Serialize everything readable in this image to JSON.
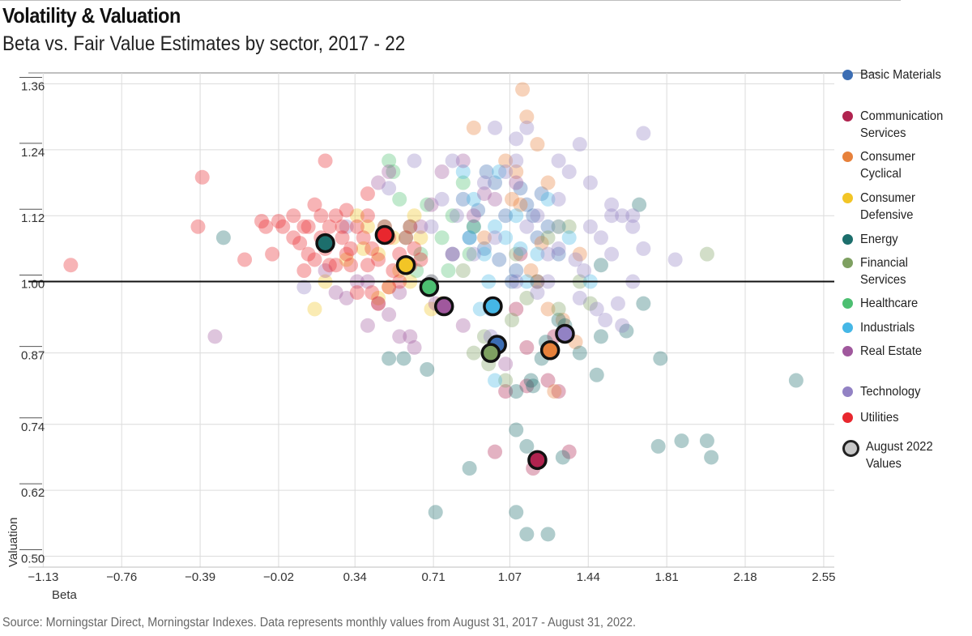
{
  "header": {
    "title": "Volatility & Valuation",
    "subtitle": "Beta vs. Fair Value Estimates by sector, 2017 - 22"
  },
  "footer": {
    "source": "Source: Morningstar Direct, Morningstar Indexes. Data represents monthly values from August 31, 2017 - August 31, 2022."
  },
  "legend": {
    "august_label": "August 2022 Values"
  },
  "chart_data": {
    "type": "scatter",
    "xlabel": "Beta",
    "ylabel": "Valuation",
    "xlim": [
      -1.2,
      2.6
    ],
    "ylim": [
      0.48,
      1.38
    ],
    "x_ticks": [
      "−1.13",
      "−0.76",
      "−0.39",
      "−0.02",
      "0.34",
      "0.71",
      "1.07",
      "1.44",
      "1.81",
      "2.18",
      "2.55"
    ],
    "x_tick_values": [
      -1.13,
      -0.76,
      -0.39,
      -0.02,
      0.34,
      0.71,
      1.07,
      1.44,
      1.81,
      2.18,
      2.55
    ],
    "y_ticks": [
      "1.36",
      "1.24",
      "1.12",
      "1.00",
      "0.87",
      "0.74",
      "0.62",
      "0.50"
    ],
    "y_tick_values": [
      1.36,
      1.24,
      1.12,
      1.0,
      0.87,
      0.74,
      0.62,
      0.5
    ],
    "reference_line_y": 1.0,
    "grid": true,
    "legend_position": "right",
    "series": [
      {
        "name": "Basic Materials",
        "color": "#3b6db3",
        "august_2022": [
          1.01,
          0.885
        ],
        "history": [
          [
            1.05,
            1.12
          ],
          [
            0.95,
            1.06
          ],
          [
            1.1,
            1.02
          ],
          [
            0.9,
            1.1
          ],
          [
            1.2,
            1.08
          ],
          [
            0.85,
            1.15
          ],
          [
            1.0,
            1.18
          ],
          [
            1.15,
            1.14
          ],
          [
            0.8,
            1.05
          ],
          [
            1.25,
            1.1
          ],
          [
            0.98,
            0.95
          ],
          [
            1.08,
            1.0
          ],
          [
            0.92,
            1.13
          ],
          [
            1.3,
            1.05
          ],
          [
            1.12,
            1.17
          ],
          [
            0.88,
            1.08
          ],
          [
            1.02,
            1.04
          ],
          [
            1.18,
            1.12
          ],
          [
            0.96,
            1.2
          ],
          [
            1.22,
            1.16
          ]
        ]
      },
      {
        "name": "Communication Services",
        "color": "#b0234f",
        "august_2022": [
          1.2,
          0.675
        ],
        "history": [
          [
            1.2,
            0.68
          ],
          [
            1.18,
            0.66
          ],
          [
            1.0,
            0.69
          ],
          [
            1.35,
            0.69
          ],
          [
            1.15,
            0.81
          ],
          [
            1.25,
            0.82
          ],
          [
            1.3,
            0.8
          ],
          [
            1.05,
            0.8
          ],
          [
            1.1,
            0.95
          ],
          [
            1.2,
            1.0
          ],
          [
            1.28,
            0.9
          ],
          [
            1.12,
            1.05
          ],
          [
            1.15,
            0.88
          ]
        ]
      },
      {
        "name": "Consumer Cyclical",
        "color": "#e7813b",
        "august_2022": [
          1.26,
          0.875
        ],
        "history": [
          [
            1.1,
            1.2
          ],
          [
            1.2,
            1.25
          ],
          [
            1.15,
            1.3
          ],
          [
            1.25,
            1.18
          ],
          [
            0.9,
            1.28
          ],
          [
            1.13,
            1.35
          ],
          [
            1.05,
            1.22
          ],
          [
            1.3,
            1.1
          ],
          [
            1.4,
            1.05
          ],
          [
            1.25,
            0.95
          ],
          [
            1.32,
            0.93
          ],
          [
            1.38,
            0.89
          ],
          [
            1.28,
            0.8
          ],
          [
            1.12,
            1.14
          ],
          [
            1.22,
            1.07
          ],
          [
            0.95,
            1.08
          ],
          [
            1.17,
            1.02
          ],
          [
            1.08,
            1.15
          ]
        ]
      },
      {
        "name": "Consumer Defensive",
        "color": "#f2c526",
        "august_2022": [
          0.58,
          1.03
        ],
        "history": [
          [
            0.55,
            1.02
          ],
          [
            0.5,
            0.99
          ],
          [
            0.45,
            1.05
          ],
          [
            0.6,
            1.0
          ],
          [
            0.65,
            1.08
          ],
          [
            0.4,
            1.1
          ],
          [
            0.35,
            1.12
          ],
          [
            0.3,
            1.04
          ],
          [
            0.2,
            1.0
          ],
          [
            0.7,
            0.95
          ],
          [
            0.75,
            0.96
          ],
          [
            0.62,
            1.12
          ],
          [
            0.52,
            1.08
          ],
          [
            0.45,
            0.97
          ],
          [
            0.15,
            0.95
          ],
          [
            0.38,
            1.06
          ]
        ]
      },
      {
        "name": "Energy",
        "color": "#1c6e6c",
        "august_2022": [
          0.2,
          1.07
        ],
        "history": [
          [
            1.1,
            0.73
          ],
          [
            1.15,
            0.7
          ],
          [
            1.32,
            0.68
          ],
          [
            1.77,
            0.7
          ],
          [
            1.88,
            0.71
          ],
          [
            2.0,
            0.71
          ],
          [
            2.02,
            0.68
          ],
          [
            2.42,
            0.82
          ],
          [
            1.1,
            0.58
          ],
          [
            1.15,
            0.54
          ],
          [
            1.25,
            0.54
          ],
          [
            0.72,
            0.58
          ],
          [
            0.88,
            0.66
          ],
          [
            0.68,
            0.84
          ],
          [
            0.5,
            0.86
          ],
          [
            0.57,
            0.86
          ],
          [
            1.48,
            0.83
          ],
          [
            1.5,
            0.9
          ],
          [
            1.78,
            0.86
          ],
          [
            1.7,
            0.96
          ],
          [
            1.33,
            0.92
          ],
          [
            1.4,
            0.87
          ],
          [
            1.24,
            0.89
          ],
          [
            1.3,
            0.93
          ],
          [
            1.17,
            0.82
          ],
          [
            1.62,
            0.91
          ],
          [
            1.5,
            1.03
          ],
          [
            1.68,
            1.14
          ],
          [
            -0.28,
            1.08
          ],
          [
            1.22,
            0.86
          ],
          [
            1.1,
            0.8
          ],
          [
            1.18,
            0.81
          ]
        ]
      },
      {
        "name": "Financial Services",
        "color": "#7ea061",
        "august_2022": [
          0.98,
          0.87
        ],
        "history": [
          [
            0.97,
            0.85
          ],
          [
            1.0,
            0.88
          ],
          [
            1.05,
            0.82
          ],
          [
            0.95,
            0.9
          ],
          [
            2.0,
            1.05
          ],
          [
            1.3,
            0.95
          ],
          [
            1.45,
            0.96
          ],
          [
            1.2,
            1.0
          ],
          [
            1.1,
            1.05
          ],
          [
            1.35,
            1.1
          ],
          [
            1.4,
            1.0
          ],
          [
            1.08,
            0.93
          ],
          [
            1.15,
            0.97
          ],
          [
            0.9,
            0.87
          ],
          [
            1.25,
            1.08
          ],
          [
            0.85,
            1.02
          ]
        ]
      },
      {
        "name": "Healthcare",
        "color": "#4cbf71",
        "august_2022": [
          0.69,
          0.99
        ],
        "history": [
          [
            0.5,
            1.22
          ],
          [
            0.52,
            1.2
          ],
          [
            0.55,
            1.15
          ],
          [
            0.6,
            1.1
          ],
          [
            0.65,
            1.05
          ],
          [
            0.7,
            1.0
          ],
          [
            0.75,
            1.08
          ],
          [
            0.8,
            1.12
          ],
          [
            0.85,
            1.18
          ],
          [
            0.9,
            1.1
          ],
          [
            0.63,
            1.02
          ],
          [
            0.58,
            1.08
          ],
          [
            0.68,
            1.14
          ],
          [
            0.78,
            1.02
          ],
          [
            0.88,
            1.05
          ],
          [
            0.48,
            1.1
          ]
        ]
      },
      {
        "name": "Industrials",
        "color": "#45b7e6",
        "august_2022": [
          0.99,
          0.955
        ],
        "history": [
          [
            0.95,
            1.05
          ],
          [
            1.0,
            1.1
          ],
          [
            1.05,
            1.08
          ],
          [
            1.1,
            1.12
          ],
          [
            1.15,
            1.0
          ],
          [
            1.2,
            1.05
          ],
          [
            1.3,
            1.1
          ],
          [
            1.35,
            1.08
          ],
          [
            1.45,
            1.0
          ],
          [
            0.9,
            1.15
          ],
          [
            0.85,
            1.2
          ],
          [
            1.02,
            1.2
          ],
          [
            1.25,
            1.15
          ],
          [
            1.0,
            0.82
          ],
          [
            0.93,
            0.95
          ],
          [
            0.97,
            1.0
          ],
          [
            1.12,
            1.06
          ],
          [
            0.88,
            1.08
          ]
        ]
      },
      {
        "name": "Real Estate",
        "color": "#a0589d",
        "august_2022": [
          0.76,
          0.955
        ],
        "history": [
          [
            0.4,
            1.0
          ],
          [
            0.45,
            0.96
          ],
          [
            0.5,
            0.94
          ],
          [
            0.55,
            0.98
          ],
          [
            0.6,
            0.9
          ],
          [
            0.4,
            0.92
          ],
          [
            0.45,
            1.18
          ],
          [
            0.7,
            1.14
          ],
          [
            0.85,
            1.22
          ],
          [
            0.75,
            1.2
          ],
          [
            0.65,
            1.1
          ],
          [
            0.8,
            1.05
          ],
          [
            0.5,
            1.2
          ],
          [
            0.3,
            0.97
          ],
          [
            0.62,
            0.88
          ],
          [
            0.55,
            0.9
          ],
          [
            -0.32,
            0.9
          ],
          [
            0.35,
            1.0
          ],
          [
            0.2,
            1.02
          ],
          [
            0.25,
            0.98
          ],
          [
            0.7,
            1.0
          ],
          [
            0.9,
            1.12
          ],
          [
            1.0,
            1.15
          ],
          [
            1.1,
            1.18
          ],
          [
            0.95,
            1.16
          ],
          [
            1.05,
            0.85
          ],
          [
            0.85,
            0.92
          ],
          [
            0.72,
            0.96
          ]
        ]
      },
      {
        "name": "Technology",
        "color": "#9282c4",
        "august_2022": [
          1.33,
          0.905
        ],
        "history": [
          [
            1.7,
            1.27
          ],
          [
            1.4,
            1.25
          ],
          [
            1.1,
            1.26
          ],
          [
            1.15,
            1.28
          ],
          [
            1.3,
            1.22
          ],
          [
            1.45,
            1.18
          ],
          [
            1.55,
            1.14
          ],
          [
            1.6,
            1.12
          ],
          [
            1.65,
            1.1
          ],
          [
            1.5,
            1.08
          ],
          [
            1.55,
            1.05
          ],
          [
            1.65,
            1.0
          ],
          [
            1.7,
            1.06
          ],
          [
            1.85,
            1.04
          ],
          [
            1.42,
            1.02
          ],
          [
            1.4,
            0.97
          ],
          [
            1.48,
            0.95
          ],
          [
            1.52,
            0.93
          ],
          [
            1.6,
            0.92
          ],
          [
            1.25,
            1.0
          ],
          [
            1.2,
            1.12
          ],
          [
            1.3,
            1.15
          ],
          [
            1.1,
            1.22
          ],
          [
            1.05,
            1.2
          ],
          [
            0.95,
            1.18
          ],
          [
            1.0,
            1.28
          ],
          [
            0.8,
            1.22
          ],
          [
            0.75,
            1.15
          ],
          [
            0.82,
            1.12
          ],
          [
            1.35,
            1.2
          ],
          [
            0.9,
            1.05
          ],
          [
            1.55,
            1.12
          ],
          [
            1.58,
            0.96
          ],
          [
            1.45,
            1.1
          ],
          [
            1.38,
            1.04
          ],
          [
            1.15,
            1.1
          ],
          [
            1.25,
            1.05
          ],
          [
            1.2,
            0.98
          ],
          [
            1.0,
            1.08
          ],
          [
            1.1,
            1.0
          ],
          [
            0.98,
            0.9
          ],
          [
            0.1,
            0.99
          ],
          [
            0.3,
            1.1
          ],
          [
            0.5,
            1.17
          ],
          [
            0.62,
            1.22
          ],
          [
            1.3,
            1.06
          ],
          [
            1.65,
            1.12
          ],
          [
            0.7,
            1.1
          ]
        ]
      },
      {
        "name": "Utilities",
        "color": "#e8272e",
        "august_2022": [
          0.48,
          1.085
        ],
        "history": [
          [
            -1.0,
            1.03
          ],
          [
            -0.38,
            1.19
          ],
          [
            -0.4,
            1.1
          ],
          [
            -0.18,
            1.04
          ],
          [
            -0.05,
            1.05
          ],
          [
            -0.08,
            1.1
          ],
          [
            -0.02,
            1.11
          ],
          [
            0.0,
            1.1
          ],
          [
            0.05,
            1.08
          ],
          [
            0.08,
            1.07
          ],
          [
            0.1,
            1.1
          ],
          [
            0.12,
            1.05
          ],
          [
            0.15,
            1.04
          ],
          [
            0.18,
            1.08
          ],
          [
            0.2,
            1.06
          ],
          [
            0.22,
            1.1
          ],
          [
            0.25,
            1.12
          ],
          [
            0.28,
            1.08
          ],
          [
            0.3,
            1.05
          ],
          [
            0.32,
            1.03
          ],
          [
            0.35,
            1.1
          ],
          [
            0.38,
            1.08
          ],
          [
            0.4,
            1.12
          ],
          [
            0.42,
            1.06
          ],
          [
            0.45,
            1.04
          ],
          [
            0.48,
            1.1
          ],
          [
            0.5,
            1.08
          ],
          [
            0.52,
            1.02
          ],
          [
            0.55,
            1.05
          ],
          [
            0.58,
            1.08
          ],
          [
            0.6,
            1.03
          ],
          [
            0.62,
            1.06
          ],
          [
            0.65,
            1.04
          ],
          [
            0.2,
            1.22
          ],
          [
            0.15,
            1.14
          ],
          [
            0.3,
            1.13
          ],
          [
            0.4,
            1.16
          ],
          [
            0.35,
            0.98
          ],
          [
            0.42,
            0.98
          ],
          [
            0.45,
            0.96
          ],
          [
            0.5,
            0.99
          ],
          [
            -0.1,
            1.11
          ],
          [
            0.05,
            1.12
          ],
          [
            0.12,
            1.1
          ],
          [
            0.18,
            1.12
          ],
          [
            0.25,
            1.03
          ],
          [
            0.32,
            1.06
          ],
          [
            0.4,
            1.03
          ],
          [
            0.1,
            1.02
          ],
          [
            0.22,
            1.03
          ],
          [
            0.28,
            1.1
          ],
          [
            0.55,
            1.0
          ],
          [
            0.6,
            1.1
          ]
        ]
      }
    ]
  }
}
